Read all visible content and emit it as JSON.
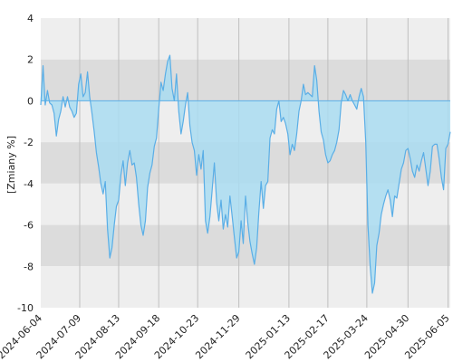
{
  "chart_data": {
    "type": "area",
    "ylabel": "[Zmiany %]",
    "xlabel": "",
    "title": "",
    "ylim": [
      -10,
      4
    ],
    "yticks": [
      4,
      2,
      0,
      -2,
      -4,
      -6,
      -8,
      -10
    ],
    "x_tick_labels": [
      "2024-06-04",
      "2024-07-09",
      "2024-08-13",
      "2024-09-18",
      "2024-10-23",
      "2024-11-29",
      "2025-01-13",
      "2025-02-17",
      "2025-03-24",
      "2025-04-30",
      "2025-06-05"
    ],
    "grid": true,
    "legend": "none",
    "colors": {
      "line": "#5aaee6",
      "fill": "#a9dcf1",
      "band_light": "#eeeeee",
      "band_dark": "#dcdcdc",
      "grid": "#bfbfbf",
      "zero_line": "#5aaee6"
    },
    "series": [
      {
        "points": [
          [
            "2024-06-04",
            -0.2
          ],
          [
            "2024-06-06",
            1.7
          ],
          [
            "2024-06-08",
            -0.2
          ],
          [
            "2024-06-10",
            0.5
          ],
          [
            "2024-06-12",
            -0.1
          ],
          [
            "2024-06-14",
            -0.2
          ],
          [
            "2024-06-16",
            -0.6
          ],
          [
            "2024-06-18",
            -1.7
          ],
          [
            "2024-06-20",
            -0.9
          ],
          [
            "2024-06-22",
            -0.5
          ],
          [
            "2024-06-24",
            0.2
          ],
          [
            "2024-06-26",
            -0.3
          ],
          [
            "2024-06-28",
            0.2
          ],
          [
            "2024-06-30",
            -0.3
          ],
          [
            "2024-07-02",
            -0.5
          ],
          [
            "2024-07-04",
            -0.8
          ],
          [
            "2024-07-06",
            -0.6
          ],
          [
            "2024-07-08",
            0.8
          ],
          [
            "2024-07-10",
            1.3
          ],
          [
            "2024-07-12",
            0.2
          ],
          [
            "2024-07-14",
            0.4
          ],
          [
            "2024-07-16",
            1.4
          ],
          [
            "2024-07-18",
            0.2
          ],
          [
            "2024-07-20",
            -0.6
          ],
          [
            "2024-07-22",
            -1.5
          ],
          [
            "2024-07-24",
            -2.5
          ],
          [
            "2024-07-26",
            -3.2
          ],
          [
            "2024-07-28",
            -4.0
          ],
          [
            "2024-07-30",
            -4.5
          ],
          [
            "2024-08-01",
            -3.9
          ],
          [
            "2024-08-03",
            -6.2
          ],
          [
            "2024-08-05",
            -7.6
          ],
          [
            "2024-08-07",
            -7.1
          ],
          [
            "2024-08-09",
            -6.0
          ],
          [
            "2024-08-11",
            -5.1
          ],
          [
            "2024-08-13",
            -4.8
          ],
          [
            "2024-08-15",
            -3.6
          ],
          [
            "2024-08-17",
            -2.9
          ],
          [
            "2024-08-19",
            -4.1
          ],
          [
            "2024-08-21",
            -3.0
          ],
          [
            "2024-08-23",
            -2.4
          ],
          [
            "2024-08-25",
            -3.1
          ],
          [
            "2024-08-27",
            -3.0
          ],
          [
            "2024-08-29",
            -3.7
          ],
          [
            "2024-08-31",
            -5.0
          ],
          [
            "2024-09-02",
            -6.0
          ],
          [
            "2024-09-04",
            -6.5
          ],
          [
            "2024-09-06",
            -5.8
          ],
          [
            "2024-09-08",
            -4.2
          ],
          [
            "2024-09-10",
            -3.5
          ],
          [
            "2024-09-12",
            -3.1
          ],
          [
            "2024-09-14",
            -2.2
          ],
          [
            "2024-09-16",
            -1.8
          ],
          [
            "2024-09-18",
            -0.4
          ],
          [
            "2024-09-20",
            0.9
          ],
          [
            "2024-09-22",
            0.5
          ],
          [
            "2024-09-24",
            1.3
          ],
          [
            "2024-09-26",
            1.9
          ],
          [
            "2024-09-28",
            2.2
          ],
          [
            "2024-09-30",
            0.6
          ],
          [
            "2024-10-02",
            0.0
          ],
          [
            "2024-10-04",
            1.3
          ],
          [
            "2024-10-06",
            -0.5
          ],
          [
            "2024-10-08",
            -1.6
          ],
          [
            "2024-10-10",
            -1.0
          ],
          [
            "2024-10-12",
            -0.2
          ],
          [
            "2024-10-14",
            0.4
          ],
          [
            "2024-10-16",
            -1.2
          ],
          [
            "2024-10-18",
            -2.0
          ],
          [
            "2024-10-20",
            -2.4
          ],
          [
            "2024-10-22",
            -3.6
          ],
          [
            "2024-10-24",
            -2.6
          ],
          [
            "2024-10-26",
            -3.3
          ],
          [
            "2024-10-28",
            -2.4
          ],
          [
            "2024-10-30",
            -5.8
          ],
          [
            "2024-11-01",
            -6.4
          ],
          [
            "2024-11-03",
            -5.6
          ],
          [
            "2024-11-05",
            -4.3
          ],
          [
            "2024-11-07",
            -3.0
          ],
          [
            "2024-11-09",
            -4.9
          ],
          [
            "2024-11-11",
            -5.8
          ],
          [
            "2024-11-13",
            -4.8
          ],
          [
            "2024-11-15",
            -6.2
          ],
          [
            "2024-11-17",
            -5.5
          ],
          [
            "2024-11-19",
            -6.1
          ],
          [
            "2024-11-21",
            -4.6
          ],
          [
            "2024-11-23",
            -5.6
          ],
          [
            "2024-11-25",
            -6.6
          ],
          [
            "2024-11-27",
            -7.6
          ],
          [
            "2024-11-29",
            -7.3
          ],
          [
            "2024-12-01",
            -5.8
          ],
          [
            "2024-12-03",
            -6.9
          ],
          [
            "2024-12-05",
            -4.6
          ],
          [
            "2024-12-07",
            -5.9
          ],
          [
            "2024-12-09",
            -6.8
          ],
          [
            "2024-12-11",
            -7.4
          ],
          [
            "2024-12-13",
            -7.9
          ],
          [
            "2024-12-15",
            -7.1
          ],
          [
            "2024-12-17",
            -5.4
          ],
          [
            "2024-12-19",
            -3.9
          ],
          [
            "2024-12-21",
            -5.2
          ],
          [
            "2024-12-23",
            -4.1
          ],
          [
            "2024-12-25",
            -3.9
          ],
          [
            "2024-12-27",
            -1.8
          ],
          [
            "2024-12-29",
            -1.4
          ],
          [
            "2024-12-31",
            -1.6
          ],
          [
            "2025-01-02",
            -0.4
          ],
          [
            "2025-01-04",
            0.0
          ],
          [
            "2025-01-06",
            -1.0
          ],
          [
            "2025-01-08",
            -0.8
          ],
          [
            "2025-01-10",
            -1.1
          ],
          [
            "2025-01-12",
            -1.6
          ],
          [
            "2025-01-14",
            -2.6
          ],
          [
            "2025-01-16",
            -2.1
          ],
          [
            "2025-01-18",
            -2.4
          ],
          [
            "2025-01-20",
            -1.6
          ],
          [
            "2025-01-22",
            -0.5
          ],
          [
            "2025-01-24",
            0.0
          ],
          [
            "2025-01-26",
            0.8
          ],
          [
            "2025-01-28",
            0.3
          ],
          [
            "2025-01-30",
            0.4
          ],
          [
            "2025-02-01",
            0.3
          ],
          [
            "2025-02-03",
            0.2
          ],
          [
            "2025-02-05",
            1.7
          ],
          [
            "2025-02-07",
            1.0
          ],
          [
            "2025-02-09",
            -0.5
          ],
          [
            "2025-02-11",
            -1.5
          ],
          [
            "2025-02-13",
            -1.9
          ],
          [
            "2025-02-15",
            -2.6
          ],
          [
            "2025-02-17",
            -3.0
          ],
          [
            "2025-02-19",
            -2.9
          ],
          [
            "2025-02-21",
            -2.6
          ],
          [
            "2025-02-23",
            -2.4
          ],
          [
            "2025-02-25",
            -2.0
          ],
          [
            "2025-02-27",
            -1.4
          ],
          [
            "2025-03-01",
            -0.1
          ],
          [
            "2025-03-03",
            0.5
          ],
          [
            "2025-03-05",
            0.3
          ],
          [
            "2025-03-07",
            0.0
          ],
          [
            "2025-03-09",
            0.3
          ],
          [
            "2025-03-11",
            0.0
          ],
          [
            "2025-03-13",
            -0.2
          ],
          [
            "2025-03-15",
            -0.4
          ],
          [
            "2025-03-17",
            0.2
          ],
          [
            "2025-03-19",
            0.6
          ],
          [
            "2025-03-21",
            0.2
          ],
          [
            "2025-03-23",
            -2.0
          ],
          [
            "2025-03-25",
            -6.0
          ],
          [
            "2025-03-27",
            -8.0
          ],
          [
            "2025-03-29",
            -9.3
          ],
          [
            "2025-03-31",
            -8.8
          ],
          [
            "2025-04-02",
            -7.0
          ],
          [
            "2025-04-04",
            -6.4
          ],
          [
            "2025-04-06",
            -5.5
          ],
          [
            "2025-04-08",
            -5.0
          ],
          [
            "2025-04-10",
            -4.6
          ],
          [
            "2025-04-12",
            -4.3
          ],
          [
            "2025-04-14",
            -4.8
          ],
          [
            "2025-04-16",
            -5.6
          ],
          [
            "2025-04-18",
            -4.6
          ],
          [
            "2025-04-20",
            -4.7
          ],
          [
            "2025-04-22",
            -4.0
          ],
          [
            "2025-04-24",
            -3.3
          ],
          [
            "2025-04-26",
            -3.0
          ],
          [
            "2025-04-28",
            -2.4
          ],
          [
            "2025-04-30",
            -2.3
          ],
          [
            "2025-05-02",
            -2.8
          ],
          [
            "2025-05-04",
            -3.4
          ],
          [
            "2025-05-06",
            -3.7
          ],
          [
            "2025-05-08",
            -3.1
          ],
          [
            "2025-05-10",
            -3.4
          ],
          [
            "2025-05-12",
            -2.9
          ],
          [
            "2025-05-14",
            -2.5
          ],
          [
            "2025-05-16",
            -3.3
          ],
          [
            "2025-05-18",
            -4.1
          ],
          [
            "2025-05-20",
            -3.4
          ],
          [
            "2025-05-22",
            -2.2
          ],
          [
            "2025-05-24",
            -2.1
          ],
          [
            "2025-05-26",
            -2.1
          ],
          [
            "2025-05-28",
            -2.8
          ],
          [
            "2025-05-30",
            -3.7
          ],
          [
            "2025-06-01",
            -4.3
          ],
          [
            "2025-06-03",
            -2.3
          ],
          [
            "2025-06-05",
            -2.1
          ],
          [
            "2025-06-07",
            -1.5
          ]
        ]
      }
    ]
  }
}
